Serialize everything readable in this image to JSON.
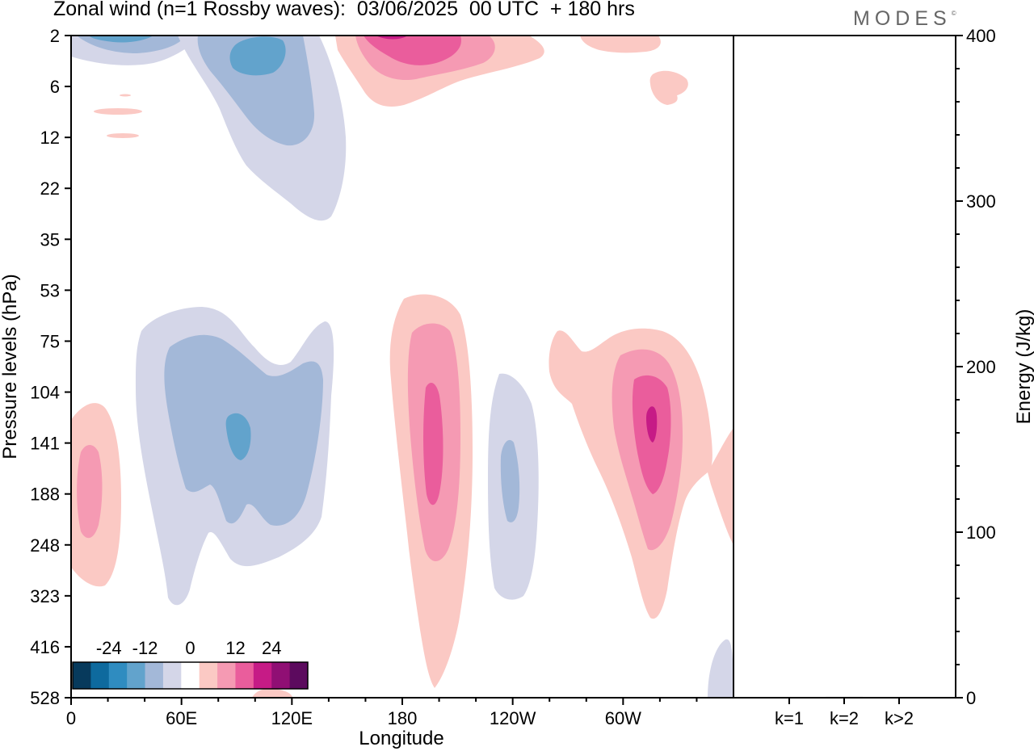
{
  "header": {
    "title": "Zonal wind (n=1 Rossby waves):  03/06/2025  00 UTC  + 180 hrs",
    "brand": "MODES",
    "brand_mark": "©"
  },
  "chart_data": [
    {
      "type": "heatmap",
      "title": "Zonal wind (n=1 Rossby waves):  03/06/2025  00 UTC  + 180 hrs",
      "xlabel": "Longitude",
      "ylabel": "Pressure levels (hPa)",
      "x_ticks": [
        "0",
        "60E",
        "120E",
        "180",
        "120W",
        "60W"
      ],
      "x_tick_degrees": [
        0,
        60,
        120,
        180,
        240,
        300
      ],
      "x_range_degrees": [
        0,
        360
      ],
      "y_ticks": [
        "2",
        "6",
        "12",
        "22",
        "35",
        "53",
        "75",
        "104",
        "141",
        "188",
        "248",
        "323",
        "416",
        "528"
      ],
      "y_scale": "pressure levels (top = 2 hPa, bottom = 528 hPa)",
      "colorbar": {
        "tick_labels": [
          "-24",
          "-12",
          "0",
          "12",
          "24"
        ],
        "tick_values": [
          -24,
          -12,
          0,
          12,
          24
        ],
        "levels": [
          -30,
          -24,
          -18,
          -12,
          -6,
          -3,
          3,
          6,
          12,
          18,
          24,
          30
        ],
        "colors": [
          "#073a5c",
          "#0e6a9e",
          "#2f8cc0",
          "#62a3cc",
          "#a3b8d8",
          "#d4d6e8",
          "#ffffff",
          "#fbc9c4",
          "#f59ab3",
          "#ea5d9c",
          "#c61b86",
          "#900f74",
          "#5c0a5e"
        ]
      },
      "features": [
        {
          "sign": "negative",
          "lon": [
            95,
            125
          ],
          "levels_hPa": [
            "2",
            "22"
          ],
          "peak": -12
        },
        {
          "sign": "negative",
          "lon": [
            25,
            125
          ],
          "levels_hPa": [
            "53",
            "323"
          ],
          "peak": -12
        },
        {
          "sign": "negative",
          "lon": [
            220,
            230
          ],
          "levels_hPa": [
            "104",
            "323"
          ],
          "peak": -6
        },
        {
          "sign": "positive",
          "lon": [
            170,
            220
          ],
          "levels_hPa": [
            "2",
            "6"
          ],
          "peak": 12
        },
        {
          "sign": "positive",
          "lon": [
            0,
            15
          ],
          "levels_hPa": [
            "104",
            "323"
          ],
          "peak": 6
        },
        {
          "sign": "positive",
          "lon": [
            175,
            200
          ],
          "levels_hPa": [
            "53",
            "528"
          ],
          "peak": 12
        },
        {
          "sign": "positive",
          "lon": [
            260,
            350
          ],
          "levels_hPa": [
            "75",
            "323"
          ],
          "peak": 18
        }
      ]
    },
    {
      "type": "bar",
      "ylabel": "Energy (J/kg)",
      "categories": [
        "k=1",
        "k=2",
        "k>2"
      ],
      "values": [
        0.3,
        0.5,
        0.4
      ],
      "ylim": [
        0,
        400
      ],
      "y_ticks": [
        "0",
        "100",
        "200",
        "300",
        "400"
      ],
      "y_tick_values": [
        0,
        100,
        200,
        300,
        400
      ]
    }
  ]
}
